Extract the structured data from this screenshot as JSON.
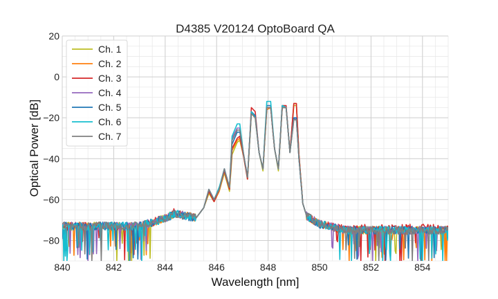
{
  "chart_data": {
    "type": "line",
    "title": "D4385 V20124 OptoBoard QA",
    "xlabel": "Wavelength [nm]",
    "ylabel": "Optical Power [dB]",
    "xlim": [
      840,
      855
    ],
    "ylim": [
      -90,
      20
    ],
    "xticks": [
      "840",
      "842",
      "844",
      "846",
      "848",
      "850",
      "852",
      "854"
    ],
    "yticks": [
      "20",
      "0",
      "−20",
      "−40",
      "−60",
      "−80"
    ],
    "grid": true,
    "legend_position": "top-left",
    "series": [
      {
        "name": "Ch. 1",
        "color": "#bcbd22",
        "x": [
          840.0,
          841.0,
          842.0,
          843.0,
          843.8,
          844.4,
          844.8,
          845.2,
          845.5,
          845.7,
          845.9,
          846.1,
          846.3,
          846.5,
          846.6,
          846.8,
          846.9,
          847.05,
          847.2,
          847.35,
          847.5,
          847.65,
          847.8,
          847.95,
          848.1,
          848.25,
          848.4,
          848.55,
          848.7,
          848.85,
          849.0,
          849.1,
          849.2,
          849.35,
          849.5,
          850.0,
          851.0,
          852.0,
          853.0,
          854.0,
          855.0
        ],
        "y": [
          -73,
          -73,
          -73,
          -73,
          -70,
          -67,
          -68,
          -69,
          -64,
          -57,
          -61,
          -56,
          -47,
          -56,
          -38,
          -32,
          -31,
          -39,
          -50,
          -18,
          -20,
          -37,
          -46,
          -16,
          -15,
          -35,
          -46,
          -15,
          -15,
          -37,
          -14,
          -14,
          -38,
          -62,
          -68,
          -72,
          -75,
          -75,
          -75,
          -75,
          -75
        ]
      },
      {
        "name": "Ch. 2",
        "color": "#ff7f0e",
        "x": [
          840.0,
          841.0,
          842.0,
          843.0,
          843.8,
          844.4,
          844.8,
          845.2,
          845.5,
          845.7,
          845.9,
          846.1,
          846.3,
          846.5,
          846.6,
          846.8,
          846.9,
          847.05,
          847.2,
          847.35,
          847.5,
          847.65,
          847.8,
          847.95,
          848.1,
          848.25,
          848.4,
          848.55,
          848.7,
          848.85,
          849.0,
          849.1,
          849.2,
          849.35,
          849.5,
          850.0,
          851.0,
          852.0,
          853.0,
          854.0,
          855.0
        ],
        "y": [
          -73,
          -73,
          -73,
          -73,
          -70,
          -67,
          -68,
          -69,
          -64,
          -56,
          -61,
          -56,
          -46,
          -55,
          -36,
          -31,
          -30,
          -39,
          -50,
          -17,
          -19,
          -37,
          -45,
          -16,
          -15,
          -35,
          -45,
          -15,
          -15,
          -37,
          -13,
          -13,
          -38,
          -62,
          -68,
          -72,
          -75,
          -75,
          -75,
          -75,
          -75
        ]
      },
      {
        "name": "Ch. 3",
        "color": "#d62728",
        "x": [
          840.0,
          841.0,
          842.0,
          843.0,
          843.8,
          844.4,
          844.8,
          845.2,
          845.5,
          845.7,
          845.9,
          846.1,
          846.3,
          846.5,
          846.6,
          846.8,
          846.9,
          847.05,
          847.2,
          847.35,
          847.5,
          847.65,
          847.8,
          847.95,
          848.1,
          848.25,
          848.4,
          848.55,
          848.7,
          848.85,
          849.0,
          849.1,
          849.2,
          849.35,
          849.5,
          850.0,
          851.0,
          852.0,
          853.0,
          854.0,
          855.0
        ],
        "y": [
          -73,
          -73,
          -73,
          -73,
          -70,
          -66,
          -68,
          -69,
          -64,
          -56,
          -61,
          -55,
          -46,
          -55,
          -35,
          -30,
          -29,
          -39,
          -50,
          -15,
          -17,
          -37,
          -45,
          -15,
          -15,
          -35,
          -45,
          -14,
          -14,
          -37,
          -13,
          -13,
          -38,
          -62,
          -68,
          -72,
          -74,
          -74,
          -74,
          -74,
          -74
        ]
      },
      {
        "name": "Ch. 4",
        "color": "#9467bd",
        "x": [
          840.0,
          841.0,
          842.0,
          843.0,
          843.8,
          844.4,
          844.8,
          845.2,
          845.5,
          845.7,
          845.9,
          846.1,
          846.3,
          846.5,
          846.6,
          846.8,
          846.9,
          847.05,
          847.2,
          847.35,
          847.5,
          847.65,
          847.8,
          847.95,
          848.1,
          848.25,
          848.4,
          848.55,
          848.7,
          848.85,
          849.0,
          849.1,
          849.2,
          849.35,
          849.5,
          850.0,
          851.0,
          852.0,
          853.0,
          854.0,
          855.0
        ],
        "y": [
          -73,
          -73,
          -73,
          -73,
          -70,
          -67,
          -68,
          -69,
          -64,
          -55,
          -60,
          -55,
          -45,
          -54,
          -30,
          -25,
          -25,
          -38,
          -49,
          -17,
          -19,
          -37,
          -45,
          -15,
          -15,
          -35,
          -45,
          -15,
          -15,
          -37,
          -20,
          -21,
          -40,
          -62,
          -68,
          -72,
          -75,
          -75,
          -75,
          -75,
          -75
        ]
      },
      {
        "name": "Ch. 5",
        "color": "#1f77b4",
        "x": [
          840.0,
          841.0,
          842.0,
          843.0,
          843.8,
          844.4,
          844.8,
          845.2,
          845.5,
          845.7,
          845.9,
          846.1,
          846.3,
          846.5,
          846.6,
          846.8,
          846.9,
          847.05,
          847.2,
          847.35,
          847.5,
          847.65,
          847.8,
          847.95,
          848.1,
          848.25,
          848.4,
          848.55,
          848.7,
          848.85,
          849.0,
          849.1,
          849.2,
          849.35,
          849.5,
          850.0,
          851.0,
          852.0,
          853.0,
          854.0,
          855.0
        ],
        "y": [
          -73,
          -73,
          -73,
          -73,
          -70,
          -67,
          -68,
          -69,
          -64,
          -55,
          -60,
          -55,
          -45,
          -54,
          -33,
          -27,
          -27,
          -38,
          -49,
          -17,
          -19,
          -37,
          -45,
          -14,
          -14,
          -35,
          -45,
          -14,
          -15,
          -37,
          -20,
          -20,
          -40,
          -62,
          -68,
          -72,
          -75,
          -75,
          -75,
          -75,
          -75
        ]
      },
      {
        "name": "Ch. 6",
        "color": "#17becf",
        "x": [
          840.0,
          841.0,
          842.0,
          843.0,
          843.8,
          844.4,
          844.8,
          845.2,
          845.5,
          845.7,
          845.9,
          846.1,
          846.3,
          846.5,
          846.6,
          846.8,
          846.9,
          847.05,
          847.2,
          847.35,
          847.5,
          847.65,
          847.8,
          847.95,
          848.1,
          848.25,
          848.4,
          848.55,
          848.7,
          848.85,
          849.0,
          849.1,
          849.2,
          849.35,
          849.5,
          850.0,
          851.0,
          852.0,
          853.0,
          854.0,
          855.0
        ],
        "y": [
          -73,
          -73,
          -73,
          -73,
          -70,
          -67,
          -68,
          -69,
          -64,
          -55,
          -60,
          -54,
          -45,
          -54,
          -29,
          -23,
          -23,
          -38,
          -49,
          -17,
          -20,
          -37,
          -45,
          -12,
          -12,
          -35,
          -45,
          -14,
          -15,
          -37,
          -21,
          -21,
          -40,
          -62,
          -68,
          -72,
          -75,
          -75,
          -75,
          -75,
          -75
        ]
      },
      {
        "name": "Ch. 7",
        "color": "#7f7f7f",
        "x": [
          840.0,
          841.0,
          842.0,
          843.0,
          843.8,
          844.4,
          844.8,
          845.2,
          845.5,
          845.7,
          845.9,
          846.1,
          846.3,
          846.5,
          846.6,
          846.8,
          846.9,
          847.05,
          847.2,
          847.35,
          847.5,
          847.65,
          847.8,
          847.95,
          848.1,
          848.25,
          848.4,
          848.55,
          848.7,
          848.85,
          849.0,
          849.1,
          849.2,
          849.35,
          849.5,
          850.0,
          851.0,
          852.0,
          853.0,
          854.0,
          855.0
        ],
        "y": [
          -73,
          -73,
          -73,
          -73,
          -70,
          -67,
          -68,
          -69,
          -64,
          -55,
          -60,
          -55,
          -45,
          -54,
          -31,
          -26,
          -26,
          -38,
          -49,
          -18,
          -20,
          -37,
          -45,
          -15,
          -15,
          -35,
          -45,
          -15,
          -15,
          -37,
          -21,
          -21,
          -40,
          -62,
          -68,
          -72,
          -75,
          -75,
          -75,
          -75,
          -75
        ]
      }
    ]
  }
}
